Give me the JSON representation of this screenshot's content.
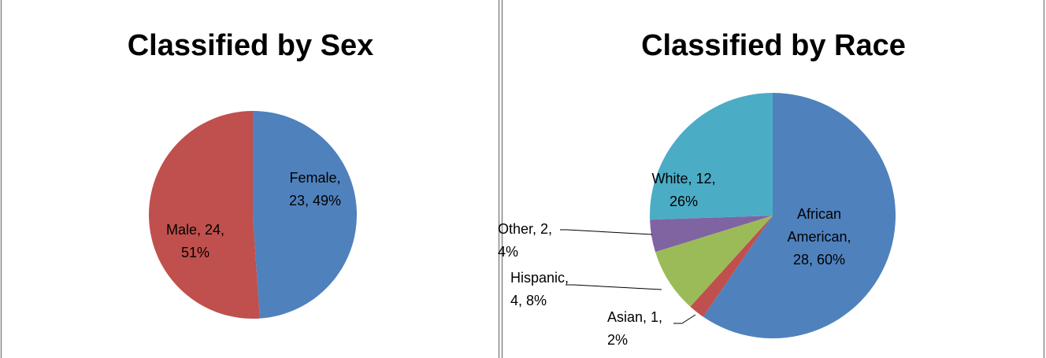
{
  "chart_data": [
    {
      "type": "pie",
      "title": "Classified by Sex",
      "categories": [
        "Female",
        "Male"
      ],
      "values": [
        23,
        24
      ],
      "value_labels": [
        [
          "Female,",
          "23, 49%"
        ],
        [
          "Male, 24,",
          "51%"
        ]
      ],
      "colors": [
        "#4f81bd",
        "#c0504d"
      ]
    },
    {
      "type": "pie",
      "title": "Classified by Race",
      "categories": [
        "African American",
        "Asian",
        "Hispanic",
        "Other",
        "White"
      ],
      "values": [
        28,
        1,
        4,
        2,
        12
      ],
      "value_labels": [
        [
          "African",
          "American,",
          "28, 60%"
        ],
        [
          "Asian, 1,",
          "2%"
        ],
        [
          "Hispanic,",
          "4, 8%"
        ],
        [
          "Other, 2,",
          "4%"
        ],
        [
          "White, 12,",
          "26%"
        ]
      ],
      "colors": [
        "#4f81bd",
        "#c0504d",
        "#9bbb59",
        "#8064a2",
        "#4bacc6"
      ]
    }
  ]
}
